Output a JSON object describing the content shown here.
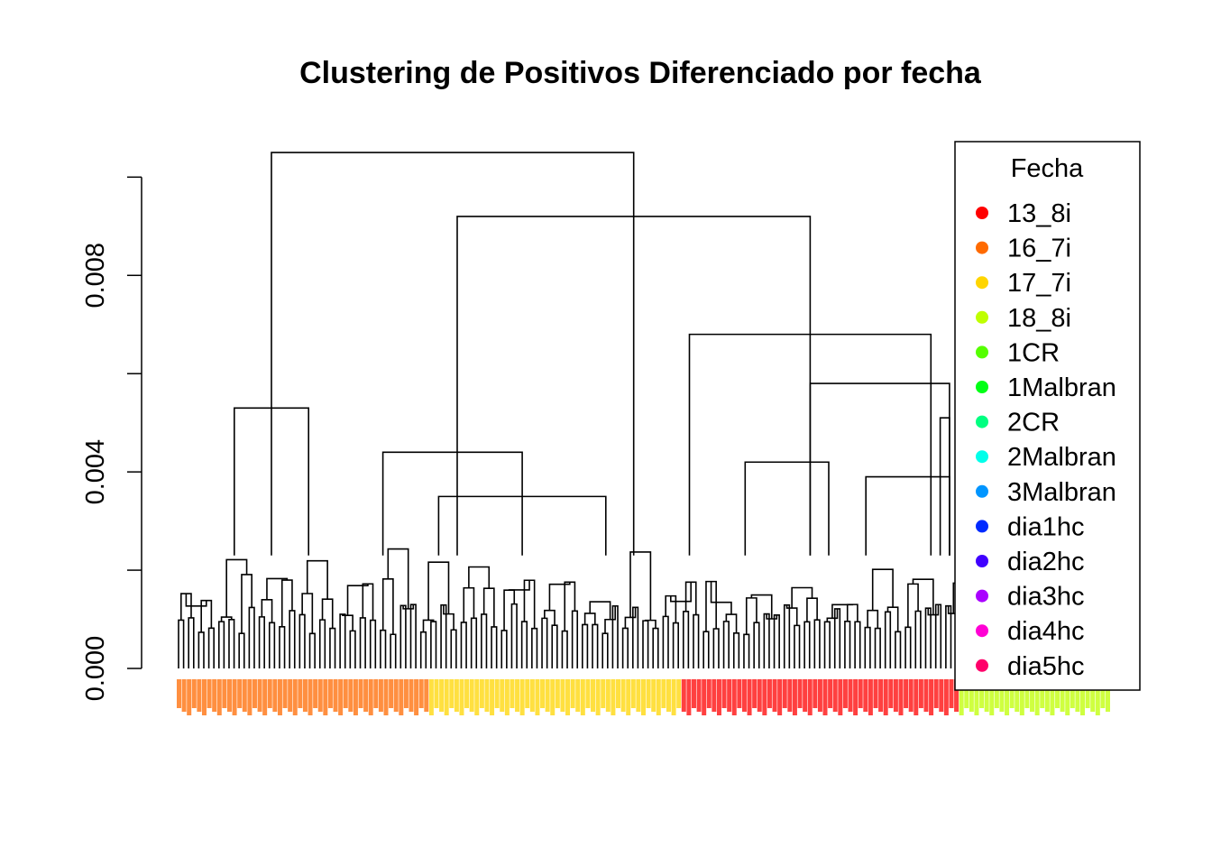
{
  "chart_data": {
    "type": "dendrogram",
    "title": "Clustering de Positivos Diferenciado por fecha",
    "xlabel": "",
    "ylabel": "",
    "ylim": [
      0,
      0.0103
    ],
    "yticks": [
      0.0,
      0.002,
      0.004,
      0.006,
      0.008,
      0.01
    ],
    "ytick_labels": [
      "0.000",
      "",
      "0.004",
      "",
      "0.008",
      ""
    ],
    "grid": false,
    "legend": {
      "title": "Fecha",
      "position": "top-right",
      "entries": [
        {
          "label": "13_8i",
          "color": "#FF0000"
        },
        {
          "label": "16_7i",
          "color": "#FF6A00"
        },
        {
          "label": "17_7i",
          "color": "#FFD500"
        },
        {
          "label": "18_8i",
          "color": "#BFFF00"
        },
        {
          "label": "1CR",
          "color": "#55FF00"
        },
        {
          "label": "1Malbran",
          "color": "#00FF15"
        },
        {
          "label": "2CR",
          "color": "#00FF80"
        },
        {
          "label": "2Malbran",
          "color": "#00FFEA"
        },
        {
          "label": "3Malbran",
          "color": "#0095FF"
        },
        {
          "label": "dia1hc",
          "color": "#002AFF"
        },
        {
          "label": "dia2hc",
          "color": "#4000FF"
        },
        {
          "label": "dia3hc",
          "color": "#AA00FF"
        },
        {
          "label": "dia4hc",
          "color": "#FF00D4"
        },
        {
          "label": "dia5hc",
          "color": "#FF006A"
        }
      ]
    },
    "merges": [
      {
        "x1": 0.1,
        "x2": 0.49,
        "h": 0.0105
      },
      {
        "x1": 0.06,
        "x2": 0.14,
        "h": 0.0053
      },
      {
        "x1": 0.3,
        "x2": 0.68,
        "h": 0.0092
      },
      {
        "x1": 0.22,
        "x2": 0.37,
        "h": 0.0044
      },
      {
        "x1": 0.55,
        "x2": 0.81,
        "h": 0.0068
      },
      {
        "x1": 0.68,
        "x2": 0.94,
        "h": 0.0058
      },
      {
        "x1": 0.82,
        "x2": 1.0,
        "h": 0.0051
      },
      {
        "x1": 0.74,
        "x2": 0.89,
        "h": 0.0039
      },
      {
        "x1": 0.61,
        "x2": 0.7,
        "h": 0.0042
      },
      {
        "x1": 0.28,
        "x2": 0.46,
        "h": 0.0035
      }
    ],
    "leaf_groups": [
      {
        "label": "16_7i",
        "color": "#FF6A00",
        "count": 50
      },
      {
        "label": "17_7i",
        "color": "#FFD500",
        "count": 50
      },
      {
        "label": "13_8i",
        "color": "#FF0000",
        "count": 55
      },
      {
        "label": "18_8i",
        "color": "#BFFF00",
        "count": 30
      }
    ]
  }
}
